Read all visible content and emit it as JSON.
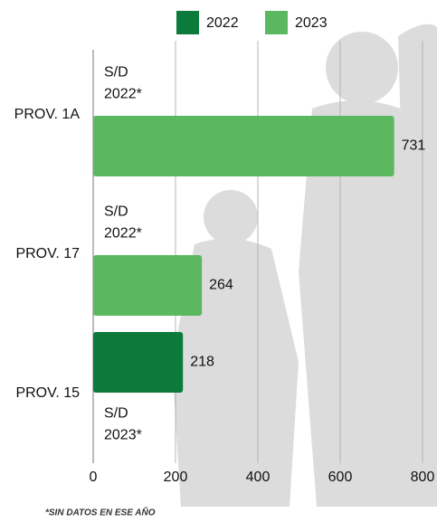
{
  "chart_data": {
    "type": "bar",
    "orientation": "horizontal",
    "categories": [
      "PROV. 1A",
      "PROV. 17",
      "PROV. 15"
    ],
    "series": [
      {
        "name": "2022",
        "color": "#0b7a3b",
        "values": [
          null,
          null,
          218
        ]
      },
      {
        "name": "2023",
        "color": "#5cb85f",
        "values": [
          731,
          264,
          null
        ]
      }
    ],
    "annotations": [
      [
        "S/D",
        "2022*"
      ],
      [
        "S/D",
        "2022*"
      ],
      [
        "S/D",
        "2023*"
      ]
    ],
    "footnote": "*SIN DATOS EN ESE AÑO",
    "xlim": [
      0,
      800
    ],
    "xticks": [
      0,
      200,
      400,
      600,
      800
    ],
    "grid": true,
    "legend": "top"
  }
}
